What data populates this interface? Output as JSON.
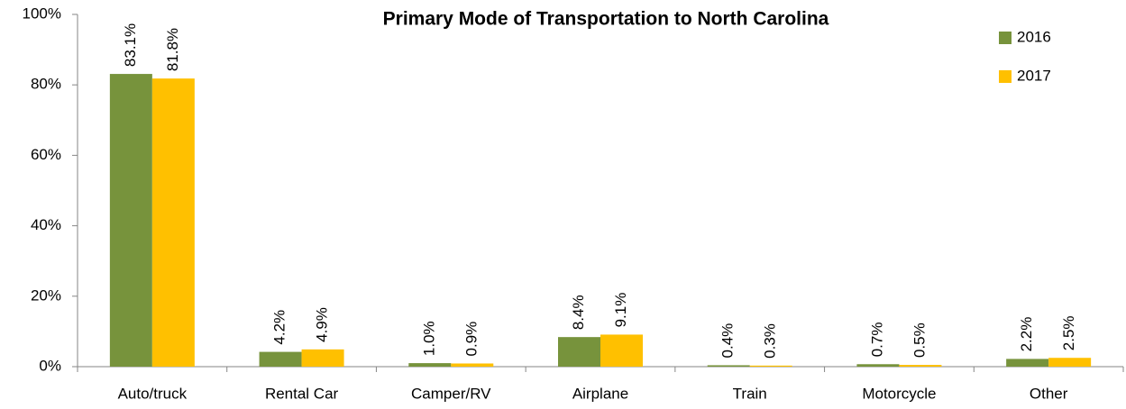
{
  "chart_data": {
    "type": "bar",
    "title": "Primary Mode of Transportation to North Carolina",
    "categories": [
      "Auto/truck",
      "Rental Car",
      "Camper/RV",
      "Airplane",
      "Train",
      "Motorcycle",
      "Other"
    ],
    "series": [
      {
        "name": "2016",
        "color": "#77933c",
        "values": [
          83.1,
          4.2,
          1.0,
          8.4,
          0.4,
          0.7,
          2.2
        ],
        "value_labels": [
          "83.1%",
          "4.2%",
          "1.0%",
          "8.4%",
          "0.4%",
          "0.7%",
          "2.2%"
        ]
      },
      {
        "name": "2017",
        "color": "#ffc000",
        "values": [
          81.8,
          4.9,
          0.9,
          9.1,
          0.3,
          0.5,
          2.5
        ],
        "value_labels": [
          "81.8%",
          "4.9%",
          "0.9%",
          "9.1%",
          "0.3%",
          "0.5%",
          "2.5%"
        ]
      }
    ],
    "ylim": [
      0,
      100
    ],
    "yticks": [
      {
        "value": 0,
        "label": "0%"
      },
      {
        "value": 20,
        "label": "20%"
      },
      {
        "value": 40,
        "label": "40%"
      },
      {
        "value": 60,
        "label": "60%"
      },
      {
        "value": 80,
        "label": "80%"
      },
      {
        "value": 100,
        "label": "100%"
      }
    ],
    "grid": false,
    "legend": "top-right"
  }
}
